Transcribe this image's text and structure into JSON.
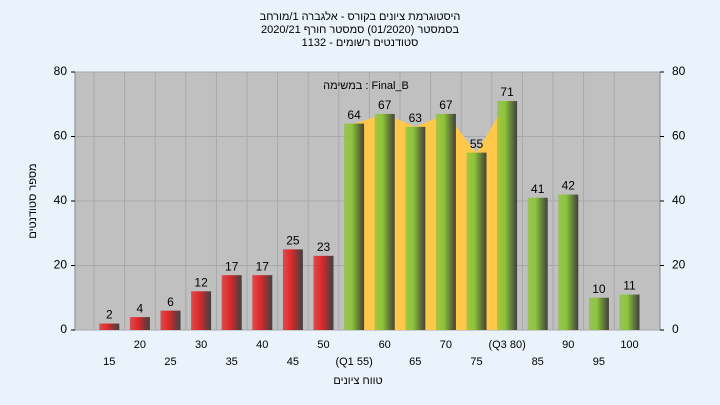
{
  "chart_data": {
    "type": "bar",
    "title": [
      "היסטוגרמת ציונים בקורס - אלגברה 1/מורחב",
      "בסמסטר (01/2020) סמסטר חורף 2020/21",
      "סטודנטים רשומים - 1132"
    ],
    "annotation": "Final_B : במשימה",
    "x_label": "טווח ציונים",
    "y_label": "מספר סטודנטים",
    "categories": [
      "15",
      "20",
      "25",
      "30",
      "35",
      "40",
      "45",
      "50",
      "(Q1 55)",
      "60",
      "65",
      "70",
      "75",
      "(Q3 80)",
      "85",
      "90",
      "95",
      "100"
    ],
    "values": [
      2,
      4,
      6,
      12,
      17,
      17,
      25,
      23,
      64,
      67,
      63,
      67,
      55,
      71,
      41,
      42,
      10,
      11
    ],
    "colors": [
      "#e0282a",
      "#e0282a",
      "#e0282a",
      "#e0282a",
      "#e0282a",
      "#e0282a",
      "#e0282a",
      "#e0282a",
      "#8cc43a",
      "#8cc43a",
      "#8cc43a",
      "#8cc43a",
      "#8cc43a",
      "#8cc43a",
      "#8cc43a",
      "#8cc43a",
      "#8cc43a",
      "#8cc43a"
    ],
    "quartile_area_color": "#ffc84a",
    "ylim": [
      0,
      80
    ],
    "yticks": [
      0,
      20,
      40,
      60,
      80
    ],
    "y2lim": [
      0,
      80
    ],
    "y2ticks": [
      0,
      20,
      40,
      60,
      80
    ],
    "grid": true
  }
}
